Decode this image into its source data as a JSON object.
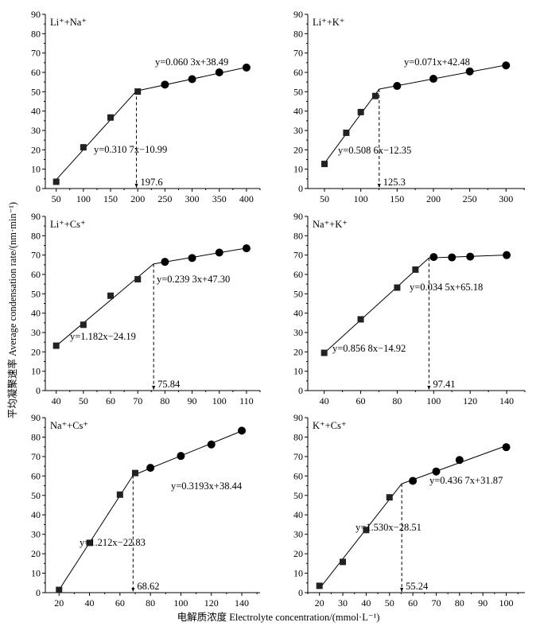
{
  "chart_data": {
    "type": "scatter",
    "ylabel": "平均凝聚速率 Average condensation rate/(nm·min⁻¹)",
    "xlabel": "电解质浓度 Electrolyte concentration/(mmol·L⁻¹)",
    "panels": [
      {
        "title": "Li⁺+Na⁺",
        "xlim": [
          30,
          425
        ],
        "ylim": [
          0,
          90
        ],
        "xticks": [
          50,
          100,
          150,
          200,
          250,
          300,
          350,
          400
        ],
        "squares": [
          [
            50,
            3.5
          ],
          [
            100,
            21.3
          ],
          [
            150,
            36.7
          ],
          [
            200,
            50.1
          ]
        ],
        "circles": [
          [
            250,
            53.7
          ],
          [
            300,
            56.5
          ],
          [
            350,
            60.0
          ],
          [
            400,
            62.5
          ]
        ],
        "fit1": {
          "slope": 0.3107,
          "intercept": -10.99,
          "label": "y=0.310 7x−10.99"
        },
        "fit2": {
          "slope": 0.0603,
          "intercept": 38.49,
          "label": "y=0.060 3x+38.49"
        },
        "breakpoint": 197.6,
        "breakpoint_label": "197.6"
      },
      {
        "title": "Li⁺+K⁺",
        "xlim": [
          27,
          326
        ],
        "ylim": [
          0,
          90
        ],
        "xticks": [
          50,
          100,
          150,
          200,
          250,
          300
        ],
        "squares": [
          [
            50,
            12.7
          ],
          [
            80,
            28.8
          ],
          [
            100,
            39.5
          ],
          [
            120,
            47.8
          ]
        ],
        "circles": [
          [
            150,
            53.0
          ],
          [
            200,
            56.7
          ],
          [
            250,
            60.5
          ],
          [
            300,
            63.6
          ]
        ],
        "fit1": {
          "slope": 0.5086,
          "intercept": -12.35,
          "label": "y=0.508 6x−12.35"
        },
        "fit2": {
          "slope": 0.071,
          "intercept": 42.48,
          "label": "y=0.071x+42.48"
        },
        "breakpoint": 125.3,
        "breakpoint_label": "125.3"
      },
      {
        "title": "Li⁺+Cs⁺",
        "xlim": [
          36,
          115
        ],
        "ylim": [
          0,
          90
        ],
        "xticks": [
          40,
          50,
          60,
          70,
          80,
          90,
          100,
          110
        ],
        "squares": [
          [
            40,
            23.2
          ],
          [
            50,
            34.0
          ],
          [
            60,
            49.0
          ],
          [
            70,
            57.5
          ]
        ],
        "circles": [
          [
            80,
            66.5
          ],
          [
            90,
            68.5
          ],
          [
            100,
            71.3
          ],
          [
            110,
            73.5
          ]
        ],
        "fit1": {
          "slope": 1.182,
          "intercept": -24.19,
          "label": "y=1.182x−24.19"
        },
        "fit2": {
          "slope": 0.2393,
          "intercept": 47.3,
          "label": "y=0.239 3x+47.30"
        },
        "breakpoint": 75.84,
        "breakpoint_label": "75.84"
      },
      {
        "title": "Na⁺+K⁺",
        "xlim": [
          31,
          150
        ],
        "ylim": [
          0,
          90
        ],
        "xticks": [
          40,
          60,
          80,
          100,
          120,
          140
        ],
        "squares": [
          [
            40,
            19.5
          ],
          [
            60,
            36.8
          ],
          [
            80,
            53.2
          ],
          [
            90,
            62.5
          ]
        ],
        "circles": [
          [
            100,
            69.0
          ],
          [
            110,
            68.8
          ],
          [
            120,
            69.2
          ],
          [
            140,
            70.0
          ]
        ],
        "fit1": {
          "slope": 0.8568,
          "intercept": -14.92,
          "label": "y=0.856 8x−14.92"
        },
        "fit2": {
          "slope": 0.0345,
          "intercept": 65.18,
          "label": "y=0.034 5x+65.18"
        },
        "breakpoint": 97.41,
        "breakpoint_label": "97.41"
      },
      {
        "title": "Na⁺+Cs⁺",
        "xlim": [
          11,
          152
        ],
        "ylim": [
          0,
          90
        ],
        "xticks": [
          20,
          40,
          60,
          80,
          100,
          120,
          140
        ],
        "squares": [
          [
            20,
            1.4
          ],
          [
            40,
            25.6
          ],
          [
            60,
            50.4
          ],
          [
            70,
            61.5
          ]
        ],
        "circles": [
          [
            80,
            64.2
          ],
          [
            100,
            70.3
          ],
          [
            120,
            76.2
          ],
          [
            140,
            83.3
          ]
        ],
        "fit1": {
          "slope": 1.212,
          "intercept": -22.83,
          "label": "y=1.212x−22.83"
        },
        "fit2": {
          "slope": 0.3193,
          "intercept": 38.44,
          "label": "y=0.3193x+38.44"
        },
        "breakpoint": 68.62,
        "breakpoint_label": "68.62"
      },
      {
        "title": "K⁺+Cs⁺",
        "xlim": [
          15,
          108
        ],
        "ylim": [
          0,
          90
        ],
        "xticks": [
          20,
          30,
          40,
          50,
          60,
          70,
          80,
          90,
          100
        ],
        "squares": [
          [
            20,
            3.5
          ],
          [
            30,
            15.8
          ],
          [
            40,
            32.2
          ],
          [
            50,
            49.0
          ]
        ],
        "circles": [
          [
            60,
            57.5
          ],
          [
            70,
            62.3
          ],
          [
            80,
            68.2
          ],
          [
            100,
            74.8
          ]
        ],
        "fit1": {
          "slope": 1.53,
          "intercept": -28.51,
          "label": "y=1.530x−28.51"
        },
        "fit2": {
          "slope": 0.4367,
          "intercept": 31.87,
          "label": "y=0.436 7x+31.87"
        },
        "breakpoint": 55.24,
        "breakpoint_label": "55.24"
      }
    ]
  }
}
